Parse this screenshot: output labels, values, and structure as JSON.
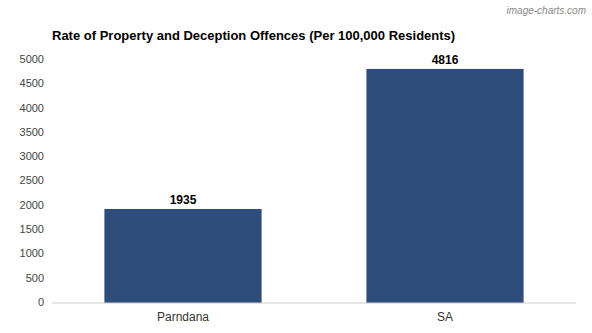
{
  "chart_data": {
    "type": "bar",
    "title": "Rate of Property and Deception Offences (Per 100,000 Residents)",
    "annotations": [
      "image-charts.com"
    ],
    "categories": [
      "Parndana",
      "SA"
    ],
    "values": [
      1935,
      4816
    ],
    "color": "#2e4d7b",
    "ylim": [
      0,
      5000
    ],
    "yticks": [
      0,
      500,
      1000,
      1500,
      2000,
      2500,
      3000,
      3500,
      4000,
      4500,
      5000
    ],
    "grid": false,
    "data_labels": true
  }
}
